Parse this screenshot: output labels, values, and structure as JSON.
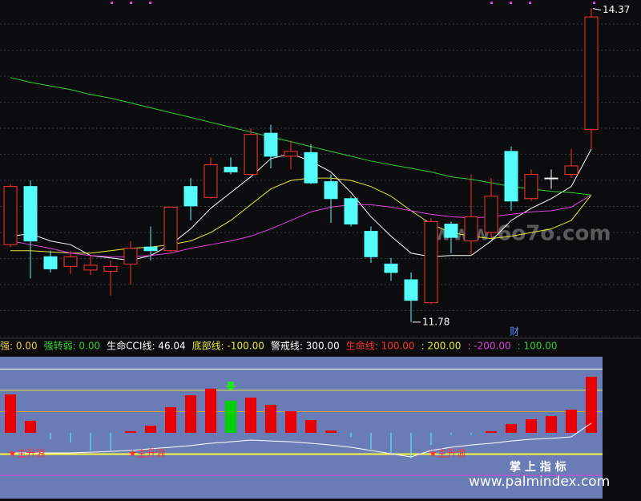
{
  "chart_data": [
    {
      "type": "candlestick",
      "ylim": [
        11.66,
        14.44
      ],
      "up_color": "#ff3232",
      "down_color": "#54fcfc",
      "flat_color": "#ffffff",
      "candles": {
        "open": [
          12.42,
          12.9,
          12.32,
          12.24,
          12.21,
          12.2,
          12.26,
          12.4,
          12.37,
          12.9,
          12.81,
          13.06,
          13.0,
          13.34,
          13.15,
          13.18,
          12.94,
          12.8,
          12.53,
          12.26,
          12.13,
          11.94,
          12.59,
          12.45,
          12.52,
          13.19,
          12.8,
          12.97,
          13.0,
          13.37
        ],
        "high": [
          12.92,
          12.95,
          12.37,
          12.37,
          12.33,
          12.29,
          12.45,
          12.57,
          12.73,
          12.97,
          13.14,
          13.14,
          13.38,
          13.41,
          13.28,
          13.25,
          13.0,
          12.82,
          12.57,
          12.31,
          12.19,
          12.64,
          12.61,
          13.0,
          12.97,
          13.23,
          13.04,
          13.04,
          13.21,
          14.37
        ],
        "low": [
          12.4,
          12.14,
          12.19,
          12.18,
          12.17,
          12.0,
          12.09,
          12.29,
          12.36,
          12.62,
          12.8,
          13.0,
          13.0,
          13.05,
          13.04,
          12.92,
          12.6,
          12.57,
          12.27,
          12.12,
          11.78,
          11.93,
          12.35,
          12.33,
          12.47,
          12.7,
          12.78,
          12.88,
          12.97,
          13.21
        ],
        "close": [
          12.9,
          12.45,
          12.22,
          12.32,
          12.25,
          12.24,
          12.39,
          12.37,
          12.73,
          12.74,
          13.08,
          13.02,
          13.33,
          13.15,
          13.19,
          12.93,
          12.8,
          12.59,
          12.32,
          12.19,
          11.96,
          12.61,
          12.48,
          12.65,
          12.82,
          12.78,
          13.0,
          12.97,
          13.07,
          14.3
        ]
      },
      "series": [
        {
          "color": "#ffffff",
          "values": [
            12.49,
            12.51,
            12.45,
            12.42,
            12.33,
            12.31,
            12.29,
            12.33,
            12.42,
            12.55,
            12.72,
            12.85,
            12.98,
            13.13,
            13.17,
            13.11,
            13.02,
            12.85,
            12.65,
            12.49,
            12.35,
            12.32,
            12.33,
            12.33,
            12.45,
            12.62,
            12.72,
            12.8,
            12.9,
            13.21
          ]
        },
        {
          "color": "#e8e83a",
          "values": [
            12.37,
            12.37,
            12.36,
            12.35,
            12.35,
            12.37,
            12.39,
            12.4,
            12.42,
            12.45,
            12.52,
            12.62,
            12.75,
            12.88,
            12.95,
            12.97,
            12.97,
            12.95,
            12.9,
            12.82,
            12.7,
            12.59,
            12.52,
            12.49,
            12.47,
            12.49,
            12.52,
            12.55,
            12.62,
            12.83
          ]
        },
        {
          "color": "#e040e0",
          "values": [
            12.45,
            12.42,
            12.39,
            12.35,
            12.33,
            12.32,
            12.32,
            12.33,
            12.35,
            12.39,
            12.42,
            12.45,
            12.49,
            12.55,
            12.62,
            12.69,
            12.73,
            12.75,
            12.75,
            12.73,
            12.7,
            12.67,
            12.65,
            12.64,
            12.65,
            12.67,
            12.69,
            12.7,
            12.73,
            12.83
          ]
        },
        {
          "color": "#30d030",
          "values": [
            13.8,
            13.76,
            13.73,
            13.7,
            13.66,
            13.63,
            13.59,
            13.55,
            13.51,
            13.47,
            13.43,
            13.39,
            13.35,
            13.31,
            13.27,
            13.23,
            13.19,
            13.15,
            13.11,
            13.08,
            13.05,
            13.02,
            12.98,
            12.96,
            12.93,
            12.9,
            12.88,
            12.86,
            12.85,
            12.83
          ]
        }
      ],
      "note": "财",
      "watermark": "www.6o7o.com"
    },
    {
      "type": "bar",
      "ylim": [
        -309,
        358
      ],
      "header": [
        {
          "text": "强: 0.00",
          "color": "#e8c84a"
        },
        {
          "text": "强转弱: 0.00",
          "color": "#30d030"
        },
        {
          "text": "生命CCI线: 46.04",
          "color": "#ffffff"
        },
        {
          "text": "底部线: -100.00",
          "color": "#e8e83a"
        },
        {
          "text": "警戒线: 300.00",
          "color": "#ffffff"
        },
        {
          "text": "生命线: 100.00",
          "color": "#ff3232"
        },
        {
          "text": ": 200.00",
          "color": "#e8e83a"
        },
        {
          "text": ": -200.00",
          "color": "#e040e0"
        },
        {
          "text": ": 100.00",
          "color": "#30d030"
        }
      ],
      "levels": [
        {
          "value": 300,
          "color": "#ffffff"
        },
        {
          "value": 200,
          "color": "#e8e83a"
        },
        {
          "value": 100,
          "color": "#d0a020"
        },
        {
          "value": -100,
          "color": "#ffff40"
        },
        {
          "value": -200,
          "color": "#e040e0"
        }
      ],
      "values": [
        181,
        57,
        -30,
        -45,
        -83,
        -83,
        8,
        34,
        121,
        177,
        208,
        151,
        166,
        132,
        102,
        60,
        11,
        -20,
        -75,
        -94,
        -121,
        -57,
        -10,
        -10,
        8,
        42,
        64,
        79,
        109,
        264
      ],
      "colors": [
        "#e80000",
        "#e80000",
        "#54fcfc",
        "#54fcfc",
        "#54fcfc",
        "#54fcfc",
        "#e80000",
        "#e80000",
        "#e80000",
        "#e80000",
        "#e80000",
        "#00d000",
        "#e80000",
        "#e80000",
        "#e80000",
        "#e80000",
        "#e80000",
        "#54fcfc",
        "#54fcfc",
        "#54fcfc",
        "#54fcfc",
        "#54fcfc",
        "#54fcfc",
        "#54fcfc",
        "#e80000",
        "#e80000",
        "#e80000",
        "#e80000",
        "#e80000",
        "#e80000"
      ],
      "line": {
        "color": "#ffffff",
        "values": [
          -94,
          -94,
          -94,
          -94,
          -91,
          -87,
          -83,
          -75,
          -68,
          -60,
          -49,
          -42,
          -34,
          -38,
          -42,
          -49,
          -57,
          -68,
          -83,
          -98,
          -113,
          -83,
          -68,
          -57,
          -49,
          -38,
          -30,
          -26,
          -19,
          46.04
        ]
      },
      "signal_labels": [
        "★主升浪",
        null,
        null,
        null,
        null,
        null,
        "★主升浪",
        null,
        null,
        null,
        null,
        null,
        null,
        null,
        null,
        null,
        null,
        null,
        null,
        null,
        null,
        "★主升浪",
        null,
        null,
        null,
        null,
        null,
        null,
        null,
        null
      ],
      "signal_color": "#ff3030",
      "caption": "掌 上 指 标",
      "watermark": "www.palmindex.com"
    }
  ]
}
